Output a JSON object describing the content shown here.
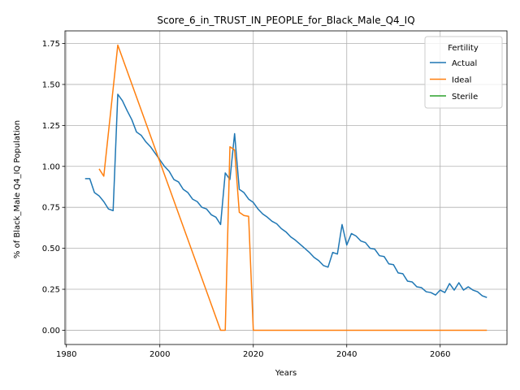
{
  "chart_data": {
    "type": "line",
    "title": "Score_6_in_TRUST_IN_PEOPLE_for_Black_Male_Q4_IQ",
    "xlabel": "Years",
    "ylabel": "% of Black_Male Q4_IQ Population",
    "xlim": [
      1979.7,
      2074.3
    ],
    "ylim": [
      -0.087,
      1.827
    ],
    "xticks": [
      1980,
      2000,
      2020,
      2040,
      2060
    ],
    "yticks": [
      0.0,
      0.25,
      0.5,
      0.75,
      1.0,
      1.25,
      1.5,
      1.75
    ],
    "ytick_labels": [
      "0.00",
      "0.25",
      "0.50",
      "0.75",
      "1.00",
      "1.25",
      "1.50",
      "1.75"
    ],
    "grid": true,
    "legend": {
      "title": "Fertility",
      "position": "top-right"
    },
    "series": [
      {
        "name": "Actual",
        "color": "#1f77b4",
        "points": [
          [
            1984,
            0.925
          ],
          [
            1985,
            0.925
          ],
          [
            1986,
            0.84
          ],
          [
            1987,
            0.82
          ],
          [
            1988,
            0.785
          ],
          [
            1989,
            0.74
          ],
          [
            1990,
            0.73
          ],
          [
            1991,
            1.44
          ],
          [
            1992,
            1.4
          ],
          [
            1993,
            1.34
          ],
          [
            1994,
            1.285
          ],
          [
            1995,
            1.21
          ],
          [
            1996,
            1.19
          ],
          [
            1997,
            1.15
          ],
          [
            1998,
            1.12
          ],
          [
            1999,
            1.08
          ],
          [
            2000,
            1.04
          ],
          [
            2001,
            1.0
          ],
          [
            2002,
            0.97
          ],
          [
            2003,
            0.92
          ],
          [
            2004,
            0.905
          ],
          [
            2005,
            0.86
          ],
          [
            2006,
            0.84
          ],
          [
            2007,
            0.8
          ],
          [
            2008,
            0.785
          ],
          [
            2009,
            0.75
          ],
          [
            2010,
            0.74
          ],
          [
            2011,
            0.705
          ],
          [
            2012,
            0.69
          ],
          [
            2013,
            0.645
          ],
          [
            2014,
            0.96
          ],
          [
            2015,
            0.92
          ],
          [
            2016,
            1.2
          ],
          [
            2017,
            0.86
          ],
          [
            2018,
            0.84
          ],
          [
            2019,
            0.8
          ],
          [
            2020,
            0.78
          ],
          [
            2021,
            0.74
          ],
          [
            2022,
            0.71
          ],
          [
            2023,
            0.69
          ],
          [
            2024,
            0.665
          ],
          [
            2025,
            0.65
          ],
          [
            2026,
            0.62
          ],
          [
            2027,
            0.6
          ],
          [
            2028,
            0.57
          ],
          [
            2029,
            0.55
          ],
          [
            2030,
            0.525
          ],
          [
            2031,
            0.5
          ],
          [
            2032,
            0.475
          ],
          [
            2033,
            0.445
          ],
          [
            2034,
            0.425
          ],
          [
            2035,
            0.395
          ],
          [
            2036,
            0.385
          ],
          [
            2037,
            0.475
          ],
          [
            2038,
            0.465
          ],
          [
            2039,
            0.645
          ],
          [
            2040,
            0.52
          ],
          [
            2041,
            0.59
          ],
          [
            2042,
            0.575
          ],
          [
            2043,
            0.545
          ],
          [
            2044,
            0.535
          ],
          [
            2045,
            0.5
          ],
          [
            2046,
            0.495
          ],
          [
            2047,
            0.455
          ],
          [
            2048,
            0.45
          ],
          [
            2049,
            0.405
          ],
          [
            2050,
            0.4
          ],
          [
            2051,
            0.35
          ],
          [
            2052,
            0.345
          ],
          [
            2053,
            0.3
          ],
          [
            2054,
            0.295
          ],
          [
            2055,
            0.265
          ],
          [
            2056,
            0.26
          ],
          [
            2057,
            0.235
          ],
          [
            2058,
            0.23
          ],
          [
            2059,
            0.215
          ],
          [
            2060,
            0.245
          ],
          [
            2061,
            0.23
          ],
          [
            2062,
            0.285
          ],
          [
            2063,
            0.245
          ],
          [
            2064,
            0.29
          ],
          [
            2065,
            0.245
          ],
          [
            2066,
            0.265
          ],
          [
            2067,
            0.245
          ],
          [
            2068,
            0.235
          ],
          [
            2069,
            0.21
          ],
          [
            2070,
            0.2
          ]
        ]
      },
      {
        "name": "Ideal",
        "color": "#ff7f0e",
        "points": [
          [
            1987,
            0.985
          ],
          [
            1988,
            0.94
          ],
          [
            1991,
            1.74
          ],
          [
            2013,
            0.0
          ],
          [
            2014,
            0.0
          ],
          [
            2015,
            1.12
          ],
          [
            2016,
            1.1
          ],
          [
            2017,
            0.72
          ],
          [
            2018,
            0.7
          ],
          [
            2019,
            0.695
          ],
          [
            2020,
            0.0
          ],
          [
            2070,
            0.0
          ]
        ]
      },
      {
        "name": "Sterile",
        "color": "#2ca02c",
        "points": []
      }
    ]
  }
}
